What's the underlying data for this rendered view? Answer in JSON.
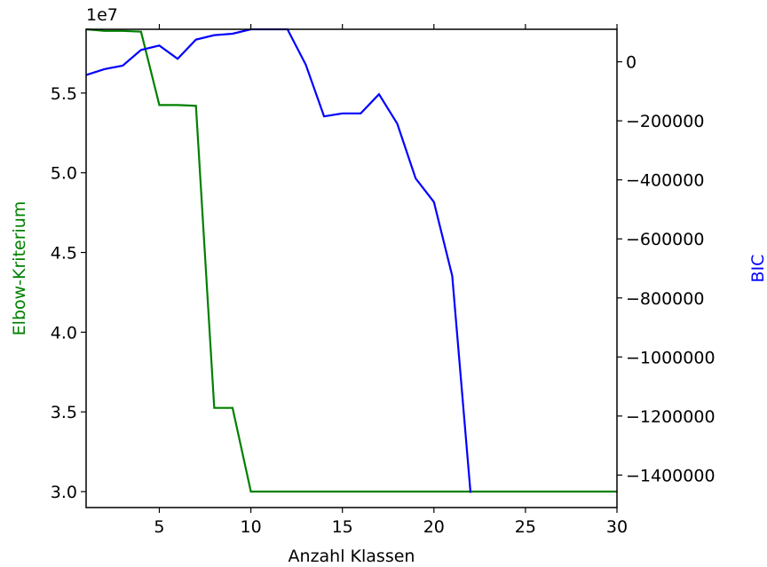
{
  "chart_data": {
    "type": "line",
    "title": "",
    "xlabel": "Anzahl Klassen",
    "xlim": [
      1,
      30
    ],
    "xticks": [
      5,
      10,
      15,
      20,
      25,
      30
    ],
    "y_left": {
      "label": "Elbow-Kriterium",
      "color": "#008000",
      "lim": [
        29000000,
        59000000
      ],
      "ticks": [
        30000000,
        35000000,
        40000000,
        45000000,
        50000000,
        55000000
      ],
      "tick_labels": [
        "3.0",
        "3.5",
        "4.0",
        "4.5",
        "5.0",
        "5.5"
      ],
      "offset_text": "1e7"
    },
    "y_right": {
      "label": "BIC",
      "color": "#0000ff",
      "lim": [
        -1510000,
        110000
      ],
      "ticks": [
        0,
        -200000,
        -400000,
        -600000,
        -800000,
        -1000000,
        -1200000,
        -1400000
      ],
      "tick_labels": [
        "0",
        "−200000",
        "−400000",
        "−600000",
        "−800000",
        "−1000000",
        "−1200000",
        "−1400000"
      ]
    },
    "series": [
      {
        "name": "Elbow-Kriterium",
        "axis": "left",
        "color": "#008000",
        "x": [
          1,
          2,
          3,
          4,
          5,
          6,
          7,
          8,
          9,
          10,
          11,
          12,
          13,
          14,
          15,
          16,
          17,
          18,
          19,
          20,
          21,
          22,
          23,
          24,
          25,
          26,
          27,
          28,
          29,
          30
        ],
        "values": [
          59000000,
          58900000,
          58900000,
          58850000,
          54250000,
          54250000,
          54200000,
          35250000,
          35250000,
          30000000,
          30000000,
          30000000,
          30000000,
          30000000,
          30000000,
          30000000,
          30000000,
          30000000,
          30000000,
          30000000,
          30000000,
          30000000,
          30000000,
          30000000,
          30000000,
          30000000,
          30000000,
          30000000,
          30000000,
          30000000
        ]
      },
      {
        "name": "BIC",
        "axis": "right",
        "color": "#0000ff",
        "x": [
          1,
          2,
          3,
          4,
          5,
          6,
          7,
          8,
          9,
          10,
          11,
          12,
          13,
          14,
          15,
          16,
          17,
          18,
          19,
          20,
          21,
          22
        ],
        "values": [
          -45000,
          -25000,
          -13000,
          40000,
          55000,
          10000,
          75000,
          90000,
          95000,
          110000,
          110000,
          110000,
          -10000,
          -185000,
          -175000,
          -175000,
          -110000,
          -210000,
          -395000,
          -475000,
          -725000,
          -1460000
        ]
      }
    ]
  }
}
